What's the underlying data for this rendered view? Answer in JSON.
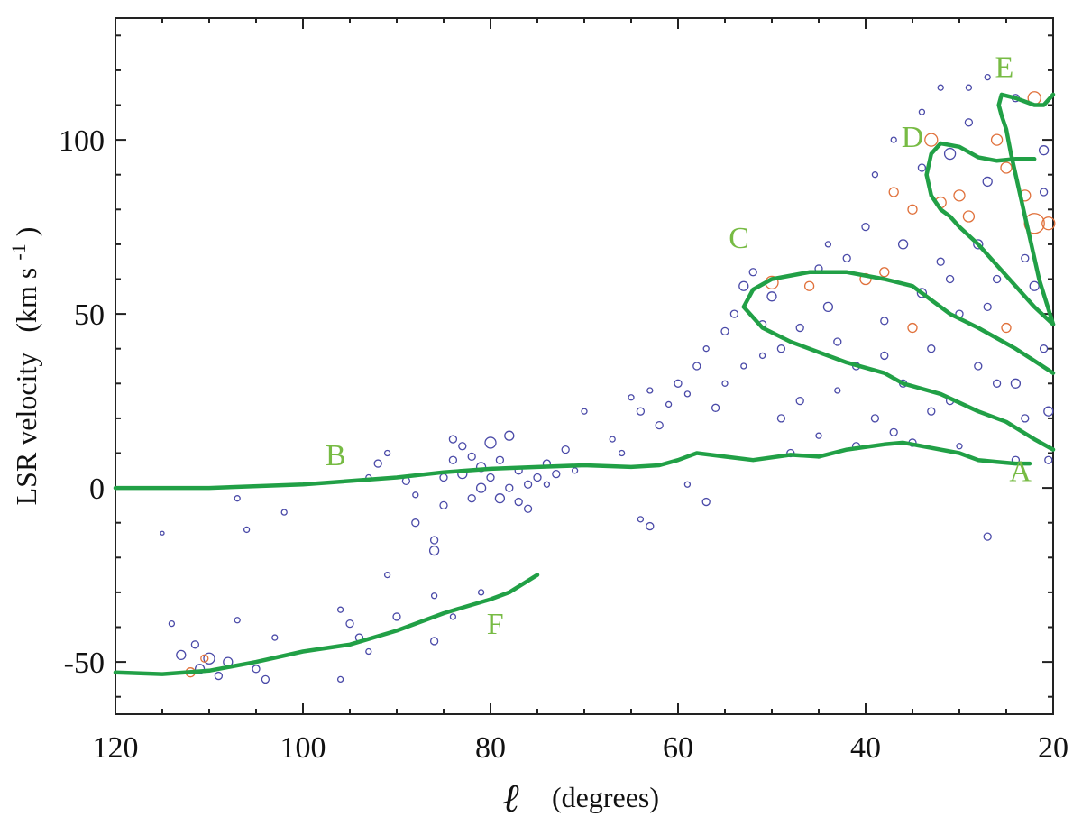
{
  "chart_data": {
    "type": "scatter",
    "xlabel_symbol": "ℓ",
    "xlabel_unit": "(degrees)",
    "ylabel": "LSR velocity",
    "ylabel_unit": "(km s",
    "ylabel_sup": "-1",
    "ylabel_close": ")",
    "xlim": [
      120,
      20
    ],
    "ylim": [
      -65,
      135
    ],
    "x_ticks": [
      120,
      100,
      80,
      60,
      40,
      20
    ],
    "y_ticks": [
      -50,
      0,
      50,
      100
    ],
    "colors": {
      "points": "#4a4aa8",
      "points_alt": "#e0703a",
      "curves": "#21a046",
      "labels": "#77bb44"
    },
    "curves": [
      {
        "name": "A",
        "label_at": [
          23.5,
          2
        ],
        "x": [
          45,
          42,
          38,
          36,
          33,
          30,
          28,
          26,
          24,
          22.5
        ],
        "y": [
          9,
          11,
          12.5,
          13,
          11.5,
          10,
          8,
          7.5,
          7,
          7
        ]
      },
      {
        "name": "B",
        "label_at": [
          96.5,
          6.5
        ],
        "x": [
          120,
          110,
          100,
          95,
          90,
          85,
          80,
          75,
          70,
          65,
          62,
          60,
          58,
          55,
          52,
          48,
          45
        ],
        "y": [
          0,
          0,
          1,
          2,
          3,
          4.5,
          5.5,
          6,
          6.5,
          6,
          6.5,
          8,
          10,
          9,
          8,
          9.5,
          9
        ]
      },
      {
        "name": "C",
        "label_at": [
          53.5,
          69
        ],
        "x": [
          20,
          22,
          25,
          28,
          32,
          36,
          38,
          42,
          45,
          48,
          51,
          53,
          52,
          50,
          46,
          42,
          38,
          35,
          33,
          31,
          28,
          24,
          20
        ],
        "y": [
          11,
          14,
          19,
          22,
          27,
          30,
          33,
          36,
          39,
          42,
          46,
          52,
          57,
          60,
          62,
          62,
          60,
          58,
          54,
          50,
          46,
          40,
          33
        ]
      },
      {
        "name": "D",
        "label_at": [
          35,
          98
        ],
        "x": [
          20,
          22,
          24,
          26,
          28,
          30,
          31,
          32,
          33,
          33.5,
          33,
          32,
          30,
          28,
          26,
          24,
          22
        ],
        "y": [
          47,
          52,
          58,
          64,
          70,
          75,
          78,
          80,
          84,
          90,
          96,
          99,
          98,
          95,
          94,
          94.5,
          94.5
        ]
      },
      {
        "name": "E",
        "label_at": [
          25.2,
          118
        ],
        "x": [
          20,
          21.5,
          22.5,
          23.5,
          24.5,
          25,
          25.5,
          25.8,
          25.5,
          24,
          22,
          21,
          20
        ],
        "y": [
          47,
          60,
          72,
          84,
          96,
          103,
          107,
          110,
          113,
          112,
          110,
          110,
          113
        ]
      },
      {
        "name": "F",
        "label_at": [
          79.5,
          -42
        ],
        "x": [
          120,
          115,
          110,
          105,
          100,
          95,
          90,
          85,
          80,
          78,
          75
        ],
        "y": [
          -53,
          -53.5,
          -52.5,
          -50,
          -47,
          -45,
          -41,
          -36,
          -32,
          -30,
          -25
        ]
      }
    ],
    "points": [
      {
        "x": 113,
        "y": -48,
        "r": 5
      },
      {
        "x": 111,
        "y": -52,
        "r": 5
      },
      {
        "x": 110,
        "y": -49,
        "r": 6
      },
      {
        "x": 109,
        "y": -54,
        "r": 4
      },
      {
        "x": 111.5,
        "y": -45,
        "r": 4
      },
      {
        "x": 108,
        "y": -50,
        "r": 5
      },
      {
        "x": 107,
        "y": -38,
        "r": 3
      },
      {
        "x": 105,
        "y": -52,
        "r": 4
      },
      {
        "x": 104,
        "y": -55,
        "r": 4
      },
      {
        "x": 112,
        "y": -53,
        "r": 5,
        "alt": true
      },
      {
        "x": 110.5,
        "y": -49,
        "r": 4,
        "alt": true
      },
      {
        "x": 114,
        "y": -39,
        "r": 3
      },
      {
        "x": 103,
        "y": -43,
        "r": 3
      },
      {
        "x": 102,
        "y": -7,
        "r": 3
      },
      {
        "x": 107,
        "y": -3,
        "r": 3
      },
      {
        "x": 115,
        "y": -13,
        "r": 2
      },
      {
        "x": 106,
        "y": -12,
        "r": 3
      },
      {
        "x": 96,
        "y": -35,
        "r": 3
      },
      {
        "x": 95,
        "y": -39,
        "r": 4
      },
      {
        "x": 94,
        "y": -43,
        "r": 4
      },
      {
        "x": 93,
        "y": -47,
        "r": 3
      },
      {
        "x": 96,
        "y": -55,
        "r": 3
      },
      {
        "x": 91,
        "y": -25,
        "r": 3
      },
      {
        "x": 90,
        "y": -37,
        "r": 4
      },
      {
        "x": 86,
        "y": -31,
        "r": 3
      },
      {
        "x": 86,
        "y": -44,
        "r": 4
      },
      {
        "x": 81,
        "y": -30,
        "r": 3
      },
      {
        "x": 84,
        "y": -37,
        "r": 3
      },
      {
        "x": 93,
        "y": 3,
        "r": 3
      },
      {
        "x": 92,
        "y": 7,
        "r": 4
      },
      {
        "x": 91,
        "y": 10,
        "r": 3
      },
      {
        "x": 89,
        "y": 2,
        "r": 4
      },
      {
        "x": 88,
        "y": -2,
        "r": 3
      },
      {
        "x": 88,
        "y": -10,
        "r": 4
      },
      {
        "x": 86,
        "y": -15,
        "r": 4
      },
      {
        "x": 86,
        "y": -18,
        "r": 5
      },
      {
        "x": 85,
        "y": -5,
        "r": 4
      },
      {
        "x": 85,
        "y": 3,
        "r": 4
      },
      {
        "x": 84,
        "y": 8,
        "r": 4
      },
      {
        "x": 84,
        "y": 14,
        "r": 4
      },
      {
        "x": 83,
        "y": 12,
        "r": 4
      },
      {
        "x": 83,
        "y": 4,
        "r": 5
      },
      {
        "x": 82,
        "y": -3,
        "r": 4
      },
      {
        "x": 82,
        "y": 9,
        "r": 4
      },
      {
        "x": 81,
        "y": 0,
        "r": 5
      },
      {
        "x": 81,
        "y": 6,
        "r": 5
      },
      {
        "x": 80,
        "y": 13,
        "r": 6
      },
      {
        "x": 80,
        "y": 3,
        "r": 4
      },
      {
        "x": 79,
        "y": -3,
        "r": 5
      },
      {
        "x": 79,
        "y": 8,
        "r": 4
      },
      {
        "x": 78,
        "y": 15,
        "r": 5
      },
      {
        "x": 78,
        "y": 0,
        "r": 4
      },
      {
        "x": 77,
        "y": -4,
        "r": 4
      },
      {
        "x": 77,
        "y": 5,
        "r": 4
      },
      {
        "x": 76,
        "y": 1,
        "r": 4
      },
      {
        "x": 76,
        "y": -6,
        "r": 4
      },
      {
        "x": 75,
        "y": 3,
        "r": 4
      },
      {
        "x": 74,
        "y": 7,
        "r": 4
      },
      {
        "x": 74,
        "y": 1,
        "r": 3
      },
      {
        "x": 73,
        "y": 4,
        "r": 4
      },
      {
        "x": 72,
        "y": 11,
        "r": 4
      },
      {
        "x": 71,
        "y": 5,
        "r": 3
      },
      {
        "x": 70,
        "y": 22,
        "r": 3
      },
      {
        "x": 67,
        "y": 14,
        "r": 3
      },
      {
        "x": 66,
        "y": 10,
        "r": 3
      },
      {
        "x": 64,
        "y": -9,
        "r": 3
      },
      {
        "x": 63,
        "y": -11,
        "r": 4
      },
      {
        "x": 65,
        "y": 26,
        "r": 3
      },
      {
        "x": 64,
        "y": 22,
        "r": 4
      },
      {
        "x": 63,
        "y": 28,
        "r": 3
      },
      {
        "x": 62,
        "y": 18,
        "r": 4
      },
      {
        "x": 61,
        "y": 24,
        "r": 3
      },
      {
        "x": 60,
        "y": 30,
        "r": 4
      },
      {
        "x": 59,
        "y": 27,
        "r": 3
      },
      {
        "x": 58,
        "y": 35,
        "r": 4
      },
      {
        "x": 57,
        "y": 40,
        "r": 3
      },
      {
        "x": 56,
        "y": 23,
        "r": 4
      },
      {
        "x": 57,
        "y": -4,
        "r": 4
      },
      {
        "x": 59,
        "y": 1,
        "r": 3
      },
      {
        "x": 55,
        "y": 45,
        "r": 4
      },
      {
        "x": 54,
        "y": 50,
        "r": 4
      },
      {
        "x": 53,
        "y": 58,
        "r": 5
      },
      {
        "x": 53,
        "y": 35,
        "r": 3
      },
      {
        "x": 52,
        "y": 62,
        "r": 4
      },
      {
        "x": 51,
        "y": 47,
        "r": 4
      },
      {
        "x": 50,
        "y": 55,
        "r": 5
      },
      {
        "x": 50,
        "y": 59,
        "r": 7,
        "alt": true
      },
      {
        "x": 49,
        "y": 40,
        "r": 4
      },
      {
        "x": 48,
        "y": 10,
        "r": 4
      },
      {
        "x": 47,
        "y": 25,
        "r": 4
      },
      {
        "x": 46,
        "y": 58,
        "r": 5,
        "alt": true
      },
      {
        "x": 45,
        "y": 63,
        "r": 4
      },
      {
        "x": 44,
        "y": 52,
        "r": 5
      },
      {
        "x": 43,
        "y": 42,
        "r": 4
      },
      {
        "x": 42,
        "y": 66,
        "r": 4
      },
      {
        "x": 41,
        "y": 35,
        "r": 4
      },
      {
        "x": 40,
        "y": 60,
        "r": 6,
        "alt": true
      },
      {
        "x": 40,
        "y": 75,
        "r": 4
      },
      {
        "x": 39,
        "y": 20,
        "r": 4
      },
      {
        "x": 38,
        "y": 62,
        "r": 5,
        "alt": true
      },
      {
        "x": 38,
        "y": 48,
        "r": 4
      },
      {
        "x": 37,
        "y": 85,
        "r": 5,
        "alt": true
      },
      {
        "x": 37,
        "y": 16,
        "r": 4
      },
      {
        "x": 36,
        "y": 70,
        "r": 5
      },
      {
        "x": 36,
        "y": 30,
        "r": 4
      },
      {
        "x": 35,
        "y": 46,
        "r": 5,
        "alt": true
      },
      {
        "x": 35,
        "y": 80,
        "r": 5,
        "alt": true
      },
      {
        "x": 34,
        "y": 56,
        "r": 5
      },
      {
        "x": 34,
        "y": 92,
        "r": 4
      },
      {
        "x": 33,
        "y": 100,
        "r": 7,
        "alt": true
      },
      {
        "x": 33,
        "y": 40,
        "r": 4
      },
      {
        "x": 32,
        "y": 82,
        "r": 6,
        "alt": true
      },
      {
        "x": 32,
        "y": 65,
        "r": 4
      },
      {
        "x": 31,
        "y": 96,
        "r": 6
      },
      {
        "x": 31,
        "y": 25,
        "r": 4
      },
      {
        "x": 30,
        "y": 84,
        "r": 6,
        "alt": true
      },
      {
        "x": 30,
        "y": 50,
        "r": 4
      },
      {
        "x": 29,
        "y": 78,
        "r": 6,
        "alt": true
      },
      {
        "x": 29,
        "y": 105,
        "r": 4
      },
      {
        "x": 28,
        "y": 70,
        "r": 5
      },
      {
        "x": 28,
        "y": 35,
        "r": 4
      },
      {
        "x": 27,
        "y": 88,
        "r": 5
      },
      {
        "x": 27,
        "y": -14,
        "r": 4
      },
      {
        "x": 26,
        "y": 100,
        "r": 6,
        "alt": true
      },
      {
        "x": 26,
        "y": 60,
        "r": 4
      },
      {
        "x": 25,
        "y": 92,
        "r": 6,
        "alt": true
      },
      {
        "x": 25,
        "y": 46,
        "r": 5,
        "alt": true
      },
      {
        "x": 24,
        "y": 112,
        "r": 4
      },
      {
        "x": 24,
        "y": 30,
        "r": 5
      },
      {
        "x": 23,
        "y": 84,
        "r": 6,
        "alt": true
      },
      {
        "x": 23,
        "y": 20,
        "r": 4
      },
      {
        "x": 22,
        "y": 112,
        "r": 7,
        "alt": true
      },
      {
        "x": 22,
        "y": 76,
        "r": 11,
        "alt": true
      },
      {
        "x": 22,
        "y": 58,
        "r": 5
      },
      {
        "x": 21,
        "y": 97,
        "r": 5
      },
      {
        "x": 21,
        "y": 40,
        "r": 4
      },
      {
        "x": 20.5,
        "y": 76,
        "r": 7,
        "alt": true
      },
      {
        "x": 20.5,
        "y": 22,
        "r": 5
      },
      {
        "x": 20.5,
        "y": 8,
        "r": 4
      },
      {
        "x": 43,
        "y": 28,
        "r": 3
      },
      {
        "x": 41,
        "y": 12,
        "r": 4
      },
      {
        "x": 39,
        "y": 90,
        "r": 3
      },
      {
        "x": 44,
        "y": 70,
        "r": 3
      },
      {
        "x": 47,
        "y": 46,
        "r": 4
      },
      {
        "x": 51,
        "y": 38,
        "r": 3
      },
      {
        "x": 55,
        "y": 30,
        "r": 3
      },
      {
        "x": 37,
        "y": 100,
        "r": 3
      },
      {
        "x": 29,
        "y": 115,
        "r": 3
      },
      {
        "x": 27,
        "y": 118,
        "r": 3
      },
      {
        "x": 24,
        "y": 8,
        "r": 4
      },
      {
        "x": 30,
        "y": 12,
        "r": 3
      },
      {
        "x": 35,
        "y": 13,
        "r": 4
      },
      {
        "x": 45,
        "y": 15,
        "r": 3
      },
      {
        "x": 49,
        "y": 20,
        "r": 4
      },
      {
        "x": 26,
        "y": 30,
        "r": 4
      },
      {
        "x": 33,
        "y": 22,
        "r": 4
      },
      {
        "x": 38,
        "y": 38,
        "r": 4
      },
      {
        "x": 31,
        "y": 60,
        "r": 4
      },
      {
        "x": 27,
        "y": 52,
        "r": 4
      },
      {
        "x": 23,
        "y": 66,
        "r": 4
      },
      {
        "x": 21,
        "y": 85,
        "r": 4
      },
      {
        "x": 34,
        "y": 108,
        "r": 3
      },
      {
        "x": 32,
        "y": 115,
        "r": 3
      }
    ]
  }
}
